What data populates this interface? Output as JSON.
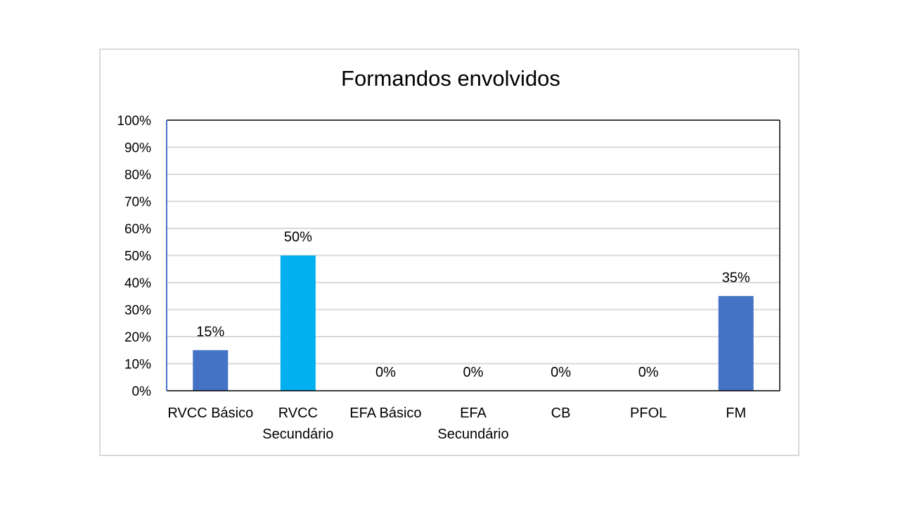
{
  "chart_data": {
    "type": "bar",
    "title": "Formandos envolvidos",
    "categories": [
      [
        "RVCC Básico"
      ],
      [
        "RVCC",
        "Secundário"
      ],
      [
        "EFA Básico"
      ],
      [
        "EFA",
        "Secundário"
      ],
      [
        "CB"
      ],
      [
        "PFOL"
      ],
      [
        "FM"
      ]
    ],
    "values": [
      15,
      50,
      0,
      0,
      0,
      0,
      35
    ],
    "data_labels": [
      "15%",
      "50%",
      "0%",
      "0%",
      "0%",
      "0%",
      "35%"
    ],
    "bar_colors": [
      "#4472c4",
      "#00b0f0",
      "#4472c4",
      "#4472c4",
      "#4472c4",
      "#4472c4",
      "#4472c4"
    ],
    "ylim": [
      0,
      100
    ],
    "yticks": [
      0,
      10,
      20,
      30,
      40,
      50,
      60,
      70,
      80,
      90,
      100
    ],
    "ytick_labels": [
      "0%",
      "10%",
      "20%",
      "30%",
      "40%",
      "50%",
      "60%",
      "70%",
      "80%",
      "90%",
      "100%"
    ],
    "xlabel": "",
    "ylabel": "",
    "grid": true,
    "legend": "none",
    "gridline_color": "#d9d9d9",
    "axis_color": "#4472c4",
    "plot_border_color": "#000000"
  }
}
